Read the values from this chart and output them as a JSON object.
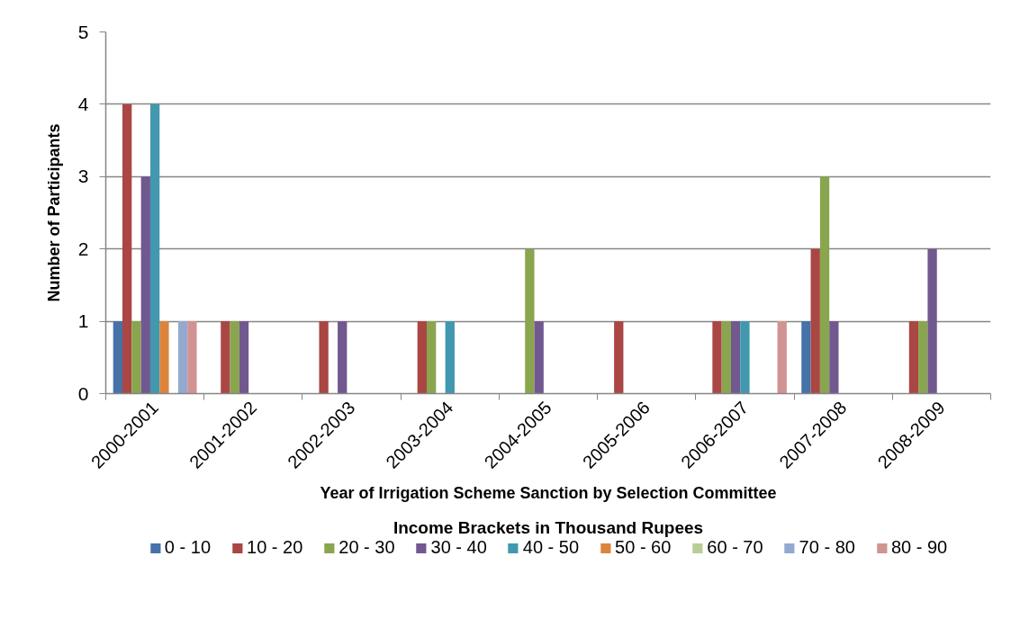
{
  "chart_data": {
    "type": "bar",
    "xlabel": "Year of Irrigation Scheme Sanction by Selection Committee",
    "ylabel": "Number of Participants",
    "legend_title": "Income Brackets in Thousand Rupees",
    "categories": [
      "2000-2001",
      "2001-2002",
      "2002-2003",
      "2003-2004",
      "2004-2005",
      "2005-2006",
      "2006-2007",
      "2007-2008",
      "2008-2009"
    ],
    "series": [
      {
        "name": "0 - 10",
        "color": "#4572a7",
        "values": [
          1,
          0,
          0,
          0,
          0,
          0,
          0,
          1,
          0
        ]
      },
      {
        "name": "10 - 20",
        "color": "#aa4643",
        "values": [
          4,
          1,
          1,
          1,
          0,
          1,
          1,
          2,
          1
        ]
      },
      {
        "name": "20 - 30",
        "color": "#89a54e",
        "values": [
          1,
          1,
          0,
          1,
          2,
          0,
          1,
          3,
          1
        ]
      },
      {
        "name": "30 - 40",
        "color": "#71588f",
        "values": [
          3,
          1,
          1,
          0,
          1,
          0,
          1,
          1,
          2
        ]
      },
      {
        "name": "40 - 50",
        "color": "#4198af",
        "values": [
          4,
          0,
          0,
          1,
          0,
          0,
          1,
          0,
          0
        ]
      },
      {
        "name": "50 - 60",
        "color": "#db843d",
        "values": [
          1,
          0,
          0,
          0,
          0,
          0,
          0,
          0,
          0
        ]
      },
      {
        "name": "60 - 70",
        "color": "#b9cd96",
        "values": [
          0,
          0,
          0,
          0,
          0,
          0,
          0,
          0,
          0
        ]
      },
      {
        "name": "70 - 80",
        "color": "#93a9cf",
        "values": [
          1,
          0,
          0,
          0,
          0,
          0,
          0,
          0,
          0
        ]
      },
      {
        "name": "80 - 90",
        "color": "#d19392",
        "values": [
          1,
          0,
          0,
          0,
          0,
          0,
          1,
          0,
          0
        ]
      }
    ],
    "ylim": [
      0,
      5
    ],
    "yticks": [
      0,
      1,
      2,
      3,
      4,
      5
    ],
    "grid": "y",
    "legend": "bottom"
  }
}
